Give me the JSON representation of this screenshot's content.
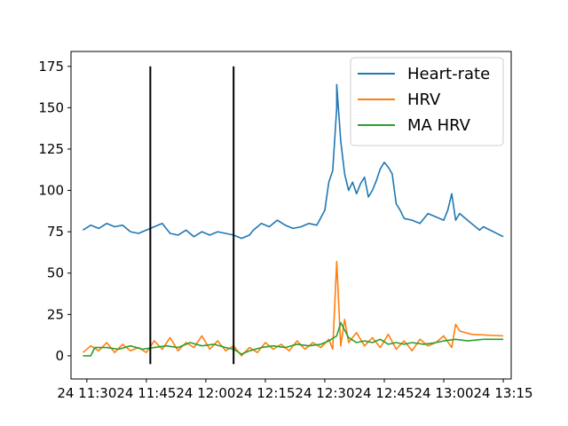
{
  "chart_data": {
    "type": "line",
    "title": "",
    "xlabel": "",
    "ylabel": "",
    "xlim": [
      "2024-01-24 11:26",
      "2024-01-24 13:17"
    ],
    "ylim": [
      -14,
      184
    ],
    "x_ticks": [
      {
        "value": "2024-01-24 11:30",
        "label": "24 11:30"
      },
      {
        "value": "2024-01-24 11:45",
        "label": "24 11:45"
      },
      {
        "value": "2024-01-24 12:00",
        "label": "24 12:00"
      },
      {
        "value": "2024-01-24 12:15",
        "label": "24 12:15"
      },
      {
        "value": "2024-01-24 12:30",
        "label": "24 12:30"
      },
      {
        "value": "2024-01-24 12:45",
        "label": "24 12:45"
      },
      {
        "value": "2024-01-24 13:00",
        "label": "24 13:00"
      },
      {
        "value": "2024-01-24 13:15",
        "label": "24 13:15"
      }
    ],
    "y_ticks": [
      0,
      25,
      50,
      75,
      100,
      125,
      150,
      175
    ],
    "grid": false,
    "legend": {
      "placement": "top-right"
    },
    "vertical_lines": [
      {
        "x": "2024-01-24 11:46",
        "y_range": [
          -5,
          175
        ],
        "color": "#000000"
      },
      {
        "x": "2024-01-24 12:07",
        "y_range": [
          -5,
          175
        ],
        "color": "#000000"
      }
    ],
    "series": [
      {
        "name": "Heart-rate",
        "color": "#1f77b4",
        "points": [
          [
            "2024-01-24 11:29",
            76
          ],
          [
            "2024-01-24 11:31",
            79
          ],
          [
            "2024-01-24 11:33",
            77
          ],
          [
            "2024-01-24 11:35",
            80
          ],
          [
            "2024-01-24 11:37",
            78
          ],
          [
            "2024-01-24 11:39",
            79
          ],
          [
            "2024-01-24 11:41",
            75
          ],
          [
            "2024-01-24 11:43",
            74
          ],
          [
            "2024-01-24 11:45",
            76
          ],
          [
            "2024-01-24 11:47",
            78
          ],
          [
            "2024-01-24 11:49",
            80
          ],
          [
            "2024-01-24 11:51",
            74
          ],
          [
            "2024-01-24 11:53",
            73
          ],
          [
            "2024-01-24 11:55",
            76
          ],
          [
            "2024-01-24 11:57",
            72
          ],
          [
            "2024-01-24 11:59",
            75
          ],
          [
            "2024-01-24 12:01",
            73
          ],
          [
            "2024-01-24 12:03",
            75
          ],
          [
            "2024-01-24 12:05",
            74
          ],
          [
            "2024-01-24 12:07",
            73
          ],
          [
            "2024-01-24 12:09",
            71
          ],
          [
            "2024-01-24 12:11",
            73
          ],
          [
            "2024-01-24 12:12",
            76
          ],
          [
            "2024-01-24 12:14",
            80
          ],
          [
            "2024-01-24 12:16",
            78
          ],
          [
            "2024-01-24 12:18",
            82
          ],
          [
            "2024-01-24 12:20",
            79
          ],
          [
            "2024-01-24 12:22",
            77
          ],
          [
            "2024-01-24 12:24",
            78
          ],
          [
            "2024-01-24 12:26",
            80
          ],
          [
            "2024-01-24 12:28",
            79
          ],
          [
            "2024-01-24 12:30",
            88
          ],
          [
            "2024-01-24 12:31",
            105
          ],
          [
            "2024-01-24 12:32",
            112
          ],
          [
            "2024-01-24 12:33",
            150
          ],
          [
            "2024-01-24 12:33",
            164
          ],
          [
            "2024-01-24 12:34",
            130
          ],
          [
            "2024-01-24 12:35",
            110
          ],
          [
            "2024-01-24 12:36",
            100
          ],
          [
            "2024-01-24 12:37",
            105
          ],
          [
            "2024-01-24 12:38",
            98
          ],
          [
            "2024-01-24 12:39",
            104
          ],
          [
            "2024-01-24 12:40",
            108
          ],
          [
            "2024-01-24 12:41",
            96
          ],
          [
            "2024-01-24 12:42",
            100
          ],
          [
            "2024-01-24 12:43",
            106
          ],
          [
            "2024-01-24 12:44",
            113
          ],
          [
            "2024-01-24 12:45",
            117
          ],
          [
            "2024-01-24 12:46",
            114
          ],
          [
            "2024-01-24 12:47",
            110
          ],
          [
            "2024-01-24 12:48",
            92
          ],
          [
            "2024-01-24 12:49",
            88
          ],
          [
            "2024-01-24 12:50",
            83
          ],
          [
            "2024-01-24 12:52",
            82
          ],
          [
            "2024-01-24 12:54",
            80
          ],
          [
            "2024-01-24 12:56",
            86
          ],
          [
            "2024-01-24 12:58",
            84
          ],
          [
            "2024-01-24 13:00",
            82
          ],
          [
            "2024-01-24 13:01",
            88
          ],
          [
            "2024-01-24 13:02",
            98
          ],
          [
            "2024-01-24 13:03",
            82
          ],
          [
            "2024-01-24 13:04",
            86
          ],
          [
            "2024-01-24 13:06",
            82
          ],
          [
            "2024-01-24 13:09",
            76
          ],
          [
            "2024-01-24 13:10",
            78
          ],
          [
            "2024-01-24 13:15",
            72
          ]
        ]
      },
      {
        "name": "HRV",
        "color": "#ff7f0e",
        "points": [
          [
            "2024-01-24 11:29",
            2
          ],
          [
            "2024-01-24 11:31",
            6
          ],
          [
            "2024-01-24 11:33",
            3
          ],
          [
            "2024-01-24 11:35",
            8
          ],
          [
            "2024-01-24 11:37",
            2
          ],
          [
            "2024-01-24 11:39",
            7
          ],
          [
            "2024-01-24 11:41",
            3
          ],
          [
            "2024-01-24 11:43",
            5
          ],
          [
            "2024-01-24 11:45",
            2
          ],
          [
            "2024-01-24 11:47",
            9
          ],
          [
            "2024-01-24 11:49",
            4
          ],
          [
            "2024-01-24 11:51",
            11
          ],
          [
            "2024-01-24 11:53",
            3
          ],
          [
            "2024-01-24 11:55",
            8
          ],
          [
            "2024-01-24 11:57",
            5
          ],
          [
            "2024-01-24 11:59",
            12
          ],
          [
            "2024-01-24 12:01",
            4
          ],
          [
            "2024-01-24 12:03",
            9
          ],
          [
            "2024-01-24 12:05",
            3
          ],
          [
            "2024-01-24 12:07",
            6
          ],
          [
            "2024-01-24 12:09",
            0
          ],
          [
            "2024-01-24 12:11",
            5
          ],
          [
            "2024-01-24 12:13",
            2
          ],
          [
            "2024-01-24 12:15",
            8
          ],
          [
            "2024-01-24 12:17",
            4
          ],
          [
            "2024-01-24 12:19",
            7
          ],
          [
            "2024-01-24 12:21",
            3
          ],
          [
            "2024-01-24 12:23",
            9
          ],
          [
            "2024-01-24 12:25",
            4
          ],
          [
            "2024-01-24 12:27",
            8
          ],
          [
            "2024-01-24 12:29",
            5
          ],
          [
            "2024-01-24 12:31",
            10
          ],
          [
            "2024-01-24 12:32",
            4
          ],
          [
            "2024-01-24 12:33",
            57
          ],
          [
            "2024-01-24 12:34",
            6
          ],
          [
            "2024-01-24 12:35",
            22
          ],
          [
            "2024-01-24 12:36",
            8
          ],
          [
            "2024-01-24 12:38",
            14
          ],
          [
            "2024-01-24 12:40",
            6
          ],
          [
            "2024-01-24 12:42",
            11
          ],
          [
            "2024-01-24 12:44",
            5
          ],
          [
            "2024-01-24 12:46",
            13
          ],
          [
            "2024-01-24 12:48",
            4
          ],
          [
            "2024-01-24 12:50",
            9
          ],
          [
            "2024-01-24 12:52",
            3
          ],
          [
            "2024-01-24 12:54",
            10
          ],
          [
            "2024-01-24 12:56",
            6
          ],
          [
            "2024-01-24 12:58",
            8
          ],
          [
            "2024-01-24 13:00",
            12
          ],
          [
            "2024-01-24 13:02",
            5
          ],
          [
            "2024-01-24 13:03",
            19
          ],
          [
            "2024-01-24 13:04",
            15
          ],
          [
            "2024-01-24 13:07",
            13
          ],
          [
            "2024-01-24 13:15",
            12
          ]
        ]
      },
      {
        "name": "MA HRV",
        "color": "#2ca02c",
        "points": [
          [
            "2024-01-24 11:29",
            0
          ],
          [
            "2024-01-24 11:31",
            0
          ],
          [
            "2024-01-24 11:32",
            5
          ],
          [
            "2024-01-24 11:35",
            5
          ],
          [
            "2024-01-24 11:38",
            4
          ],
          [
            "2024-01-24 11:41",
            6
          ],
          [
            "2024-01-24 11:44",
            4
          ],
          [
            "2024-01-24 11:47",
            5
          ],
          [
            "2024-01-24 11:50",
            6
          ],
          [
            "2024-01-24 11:53",
            5
          ],
          [
            "2024-01-24 11:56",
            8
          ],
          [
            "2024-01-24 11:59",
            6
          ],
          [
            "2024-01-24 12:02",
            7
          ],
          [
            "2024-01-24 12:05",
            5
          ],
          [
            "2024-01-24 12:07",
            4
          ],
          [
            "2024-01-24 12:09",
            1
          ],
          [
            "2024-01-24 12:11",
            3
          ],
          [
            "2024-01-24 12:14",
            5
          ],
          [
            "2024-01-24 12:17",
            6
          ],
          [
            "2024-01-24 12:20",
            5
          ],
          [
            "2024-01-24 12:23",
            7
          ],
          [
            "2024-01-24 12:26",
            6
          ],
          [
            "2024-01-24 12:29",
            7
          ],
          [
            "2024-01-24 12:31",
            9
          ],
          [
            "2024-01-24 12:33",
            12
          ],
          [
            "2024-01-24 12:34",
            20
          ],
          [
            "2024-01-24 12:36",
            11
          ],
          [
            "2024-01-24 12:38",
            8
          ],
          [
            "2024-01-24 12:40",
            9
          ],
          [
            "2024-01-24 12:42",
            8
          ],
          [
            "2024-01-24 12:44",
            10
          ],
          [
            "2024-01-24 12:46",
            7
          ],
          [
            "2024-01-24 12:48",
            8
          ],
          [
            "2024-01-24 12:50",
            7
          ],
          [
            "2024-01-24 12:52",
            8
          ],
          [
            "2024-01-24 12:55",
            7
          ],
          [
            "2024-01-24 12:58",
            8
          ],
          [
            "2024-01-24 13:00",
            9
          ],
          [
            "2024-01-24 13:03",
            10
          ],
          [
            "2024-01-24 13:06",
            9
          ],
          [
            "2024-01-24 13:10",
            10
          ],
          [
            "2024-01-24 13:15",
            10
          ]
        ]
      }
    ]
  }
}
